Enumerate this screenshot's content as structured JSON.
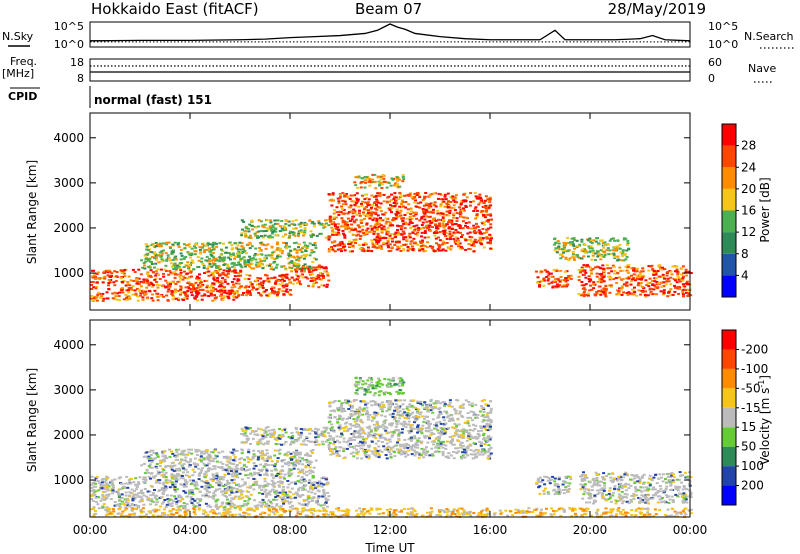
{
  "header": {
    "station": "Hokkaido East (fitACF)",
    "beam": "Beam 07",
    "date": "28/May/2019"
  },
  "panel_labels": {
    "nsky": "N.Sky",
    "nsearch": "N.Search",
    "freq": "Freq.",
    "mhz": "[MHz]",
    "nave": "Nave",
    "cpid": "CPID",
    "mode": "normal (fast) 151"
  },
  "chart_data": [
    {
      "type": "line",
      "name": "noise",
      "left_ticks": [
        "10^5",
        "10^0"
      ],
      "right_ticks": [
        "10^5",
        "10^0"
      ],
      "x_ticks_hours": [
        0,
        4,
        8,
        12,
        16,
        20,
        24
      ],
      "series": [
        {
          "name": "N.Sky",
          "style": "solid",
          "x": [
            0,
            2,
            4,
            6,
            7,
            8,
            9,
            10,
            11,
            11.5,
            12,
            12.3,
            12.6,
            13,
            14,
            15,
            16,
            18,
            18.6,
            19,
            20,
            21,
            22,
            22.5,
            23,
            24
          ],
          "y": [
            0.2,
            0.22,
            0.22,
            0.25,
            0.28,
            0.35,
            0.4,
            0.45,
            0.55,
            0.7,
            1.0,
            0.85,
            0.75,
            0.55,
            0.4,
            0.3,
            0.25,
            0.25,
            0.7,
            0.25,
            0.25,
            0.25,
            0.3,
            0.45,
            0.25,
            0.2
          ]
        },
        {
          "name": "N.Search",
          "style": "dotted",
          "x": [
            0,
            24
          ],
          "y": [
            0.15,
            0.15
          ]
        }
      ]
    },
    {
      "type": "line",
      "name": "frequency",
      "left_ticks": [
        "18",
        "8"
      ],
      "right_ticks": [
        "60",
        "0"
      ],
      "series": [
        {
          "name": "Freq",
          "style": "solid",
          "x": [
            0,
            24
          ],
          "y": [
            11,
            11
          ]
        },
        {
          "name": "Nave",
          "style": "dotted",
          "x": [
            0,
            24
          ],
          "y": [
            32,
            32
          ]
        }
      ]
    },
    {
      "type": "heatmap",
      "name": "power",
      "ylabel": "Slant Range [km]",
      "y_ticks": [
        1000,
        2000,
        3000,
        4000
      ],
      "ylim": [
        180,
        4550
      ],
      "colorbar": {
        "label": "Power [dB]",
        "ticks": [
          "4",
          "8",
          "12",
          "16",
          "20",
          "24",
          "28"
        ],
        "colors": [
          "#0000ff",
          "#2255aa",
          "#2e8b57",
          "#4caf50",
          "#f5c518",
          "#ff8c00",
          "#ff4500",
          "#ff0000"
        ]
      },
      "regions": [
        {
          "x": [
            0,
            6
          ],
          "y": [
            400,
            1100
          ],
          "level": "high"
        },
        {
          "x": [
            6,
            8
          ],
          "y": [
            500,
            1000
          ],
          "level": "high"
        },
        {
          "x": [
            8,
            9.5
          ],
          "y": [
            700,
            1200
          ],
          "level": "high"
        },
        {
          "x": [
            2,
            9
          ],
          "y": [
            1100,
            1700
          ],
          "level": "low"
        },
        {
          "x": [
            6,
            9.5
          ],
          "y": [
            1800,
            2200
          ],
          "level": "low"
        },
        {
          "x": [
            9.5,
            16
          ],
          "y": [
            1500,
            2800
          ],
          "level": "high"
        },
        {
          "x": [
            10.5,
            12.5
          ],
          "y": [
            2900,
            3200
          ],
          "level": "mid"
        },
        {
          "x": [
            17.8,
            19.2
          ],
          "y": [
            700,
            1100
          ],
          "level": "high"
        },
        {
          "x": [
            19.5,
            24
          ],
          "y": [
            500,
            1200
          ],
          "level": "high"
        },
        {
          "x": [
            18.5,
            21.5
          ],
          "y": [
            1300,
            1800
          ],
          "level": "low"
        }
      ]
    },
    {
      "type": "heatmap",
      "name": "velocity",
      "xlabel": "Time UT",
      "ylabel": "Slant Range [km]",
      "x_ticks": [
        "00:00",
        "04:00",
        "08:00",
        "12:00",
        "16:00",
        "20:00",
        "00:00"
      ],
      "y_ticks": [
        1000,
        2000,
        3000,
        4000
      ],
      "ylim": [
        180,
        4550
      ],
      "colorbar": {
        "label": "Velocity [m s",
        "label_sup": "-1",
        "label_end": "]",
        "ticks": [
          "200",
          "100",
          "50",
          "15",
          "-15",
          "-50",
          "-100",
          "-200"
        ],
        "colors": [
          "#0000ff",
          "#2244aa",
          "#2e8b57",
          "#66cc33",
          "#bbbbbb",
          "#f5c518",
          "#ff8c00",
          "#ff4500",
          "#ff0000"
        ]
      },
      "regions": [
        {
          "x": [
            0,
            9.5
          ],
          "y": [
            400,
            1100
          ],
          "level": "ground"
        },
        {
          "x": [
            2,
            9
          ],
          "y": [
            1100,
            1700
          ],
          "level": "ground"
        },
        {
          "x": [
            6,
            9.5
          ],
          "y": [
            1800,
            2200
          ],
          "level": "ground"
        },
        {
          "x": [
            9.5,
            16
          ],
          "y": [
            1500,
            2800
          ],
          "level": "ground"
        },
        {
          "x": [
            10.5,
            12.5
          ],
          "y": [
            2900,
            3300
          ],
          "level": "pos"
        },
        {
          "x": [
            17.8,
            19.2
          ],
          "y": [
            700,
            1100
          ],
          "level": "ground"
        },
        {
          "x": [
            19.5,
            24
          ],
          "y": [
            500,
            1200
          ],
          "level": "ground"
        },
        {
          "x": [
            0,
            24
          ],
          "y": [
            200,
            400
          ],
          "level": "neg"
        }
      ]
    }
  ]
}
